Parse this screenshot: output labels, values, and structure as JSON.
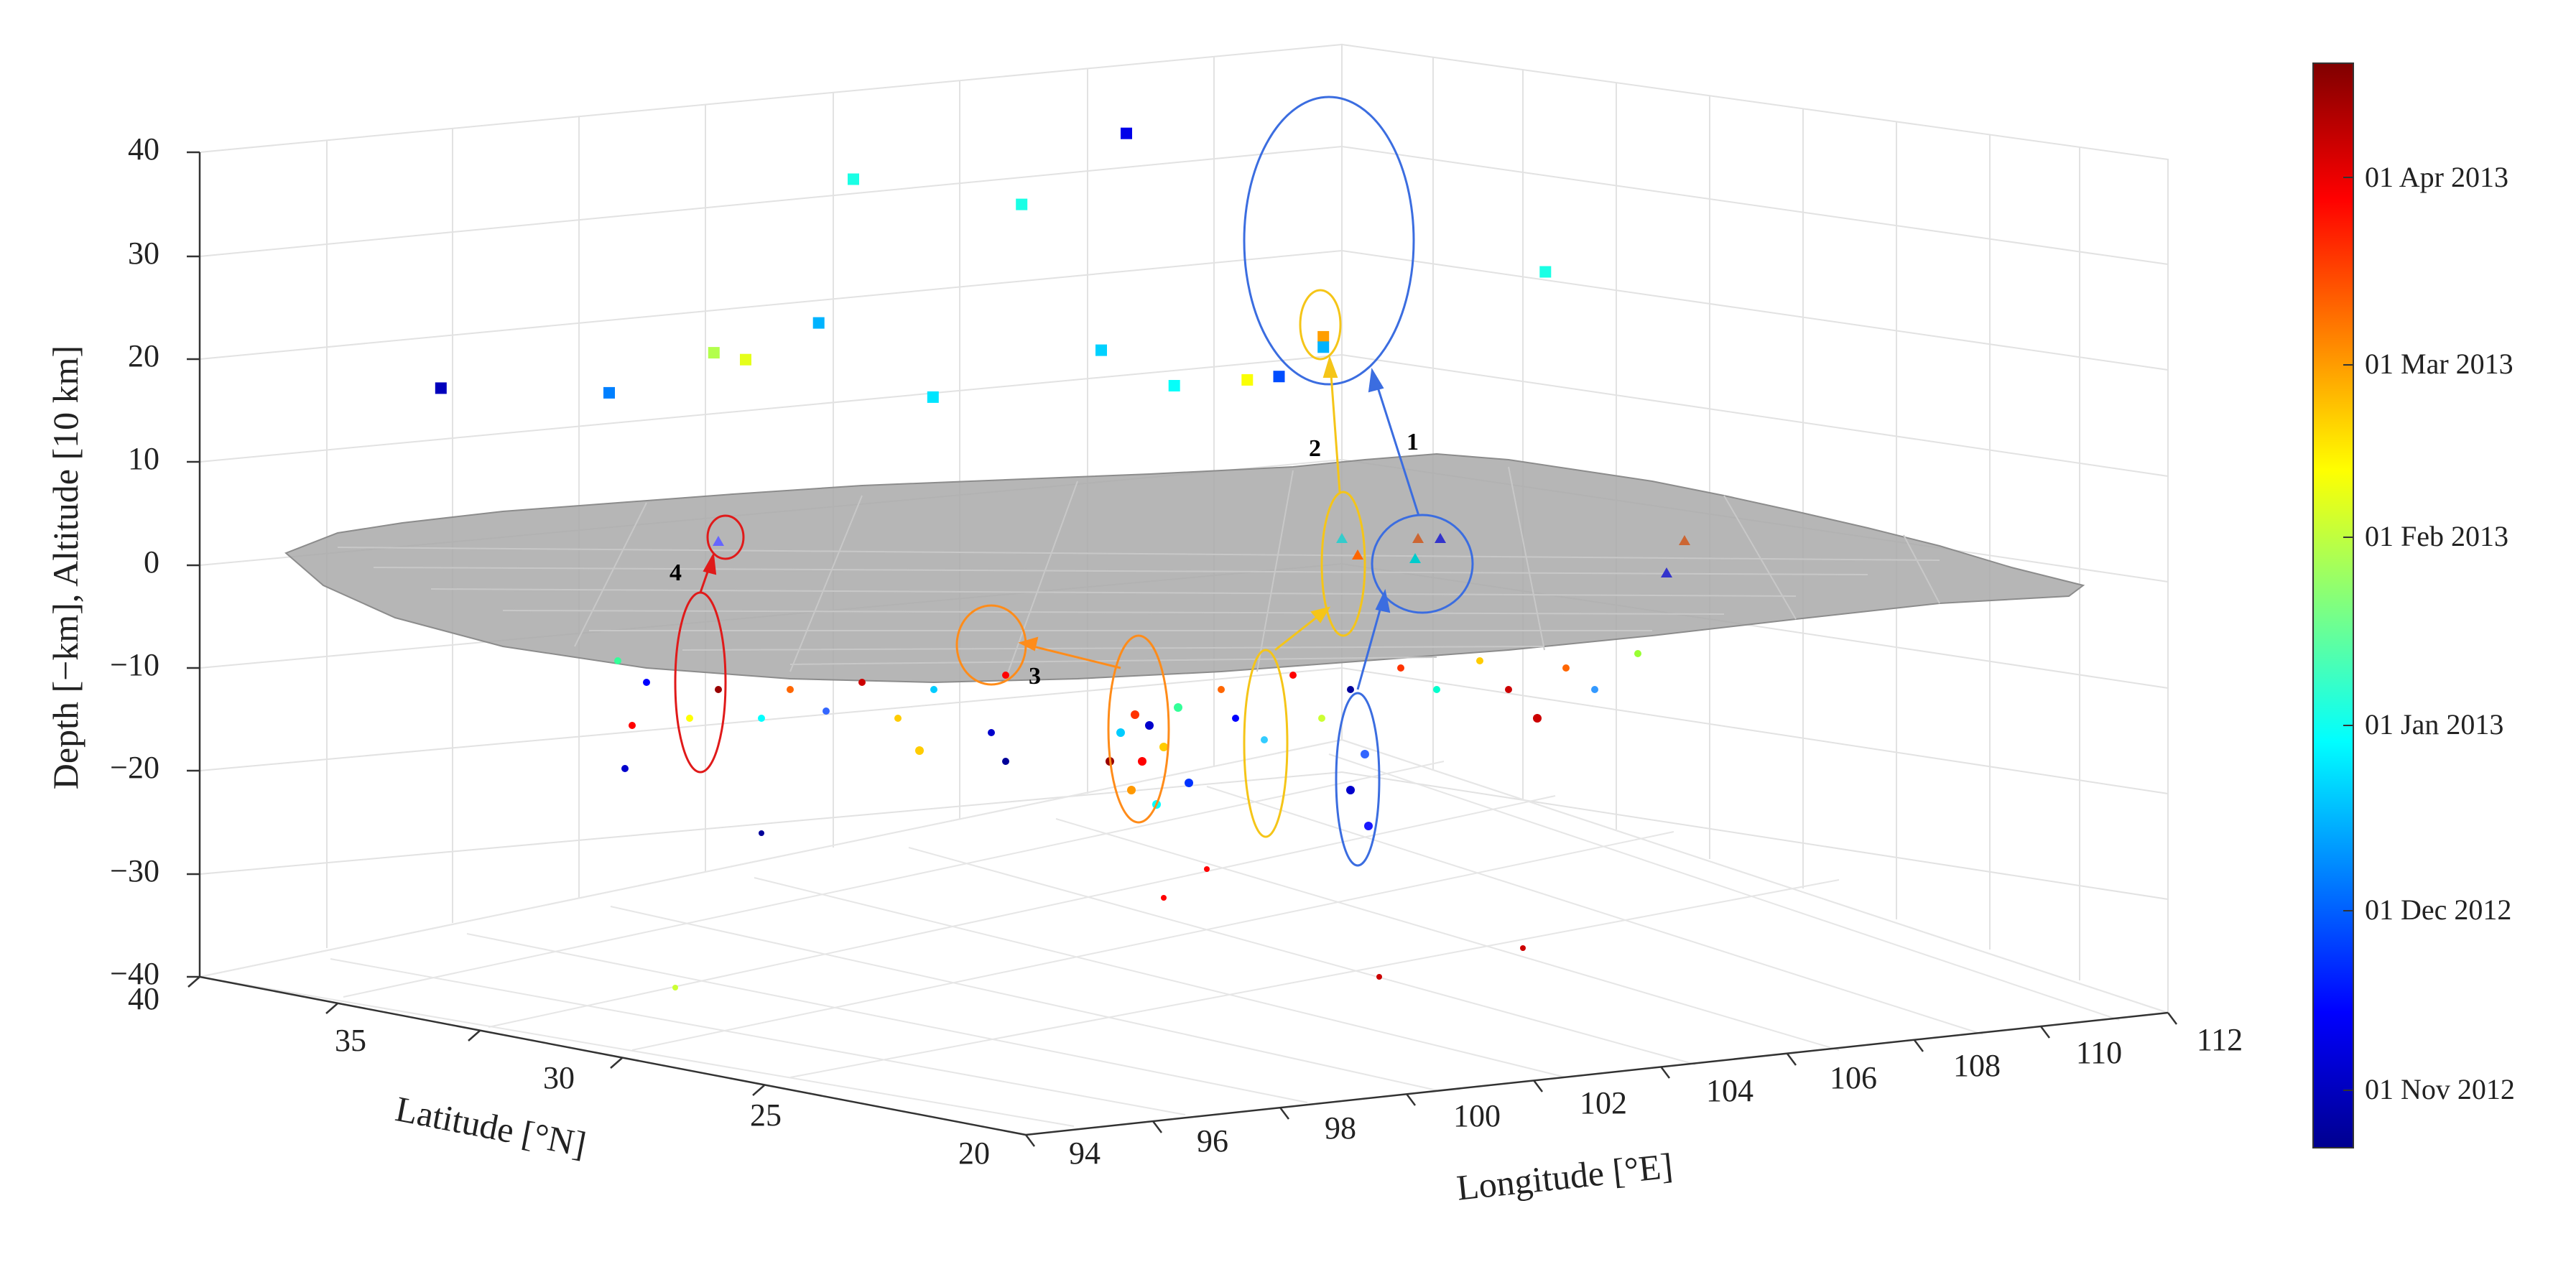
{
  "chart_data": {
    "type": "scatter3d",
    "axes": {
      "z": {
        "label": "Depth [−km], Altitude [10 km]",
        "ticks": [
          "40",
          "30",
          "20",
          "10",
          "0",
          "−10",
          "−20",
          "−30",
          "−40"
        ],
        "range": [
          -40,
          40
        ]
      },
      "y": {
        "label": "Latitude [°N]",
        "ticks": [
          "40",
          "35",
          "30",
          "25",
          "20"
        ],
        "range": [
          20,
          40
        ]
      },
      "x": {
        "label": "Longitude [°E]",
        "ticks": [
          "94",
          "96",
          "98",
          "100",
          "102",
          "104",
          "106",
          "108",
          "110",
          "112"
        ],
        "range": [
          94,
          112
        ]
      }
    },
    "surface": {
      "name": "topography",
      "color": "#9a9a9a"
    },
    "colorbar": {
      "ticks": [
        "01 Apr 2013",
        "01 Mar 2013",
        "01 Feb 2013",
        "01 Jan 2013",
        "01 Dec 2012",
        "01 Nov 2012"
      ],
      "colormap": "jet"
    },
    "annotations": [
      "1",
      "2",
      "3",
      "4"
    ],
    "series": {
      "altitude_markers": [
        {
          "lon": 96.5,
          "lat": 38,
          "z": 17,
          "c": 0.05
        },
        {
          "lon": 98.5,
          "lat": 37,
          "z": 16,
          "c": 0.25
        },
        {
          "lon": 99.5,
          "lat": 36,
          "z": 20,
          "c": 0.55
        },
        {
          "lon": 100,
          "lat": 36,
          "z": 19,
          "c": 0.6
        },
        {
          "lon": 101,
          "lat": 33,
          "z": 17,
          "c": 0.35
        },
        {
          "lon": 100.5,
          "lat": 35,
          "z": 23,
          "c": 0.3
        },
        {
          "lon": 103,
          "lat": 38,
          "z": 33,
          "c": 0.4
        },
        {
          "lon": 103,
          "lat": 32,
          "z": 21,
          "c": 0.33
        },
        {
          "lon": 103.5,
          "lat": 31,
          "z": 18,
          "c": 0.38
        },
        {
          "lon": 104,
          "lat": 30,
          "z": 19,
          "c": 0.62
        },
        {
          "lon": 104.5,
          "lat": 30,
          "z": 19,
          "c": 0.2
        },
        {
          "lon": 105,
          "lat": 37,
          "z": 30,
          "c": 0.4
        },
        {
          "lon": 106,
          "lat": 36,
          "z": 37,
          "c": 0.1
        },
        {
          "lon": 106.5,
          "lat": 32,
          "z": 20,
          "c": 0.72
        },
        {
          "lon": 106.5,
          "lat": 32,
          "z": 19,
          "c": 0.3
        },
        {
          "lon": 110,
          "lat": 32,
          "z": 24,
          "c": 0.4
        }
      ]
    }
  }
}
